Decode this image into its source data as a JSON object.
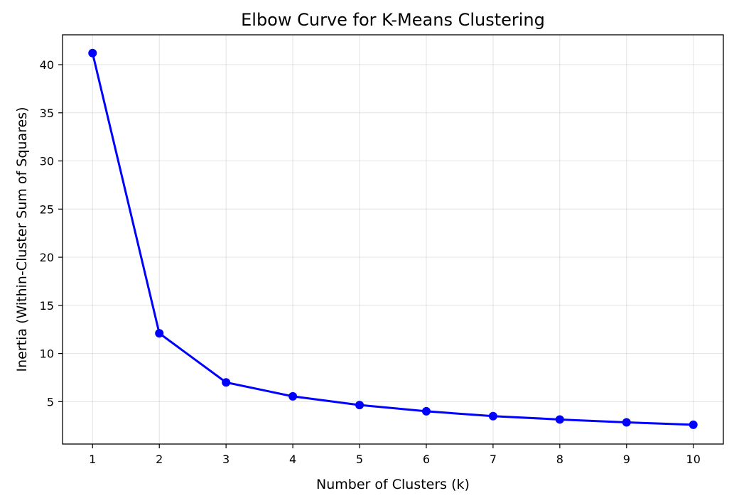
{
  "chart_data": {
    "type": "line",
    "title": "Elbow Curve for K-Means Clustering",
    "xlabel": "Number of Clusters (k)",
    "ylabel": "Inertia (Within-Cluster Sum of Squares)",
    "x": [
      1,
      2,
      3,
      4,
      5,
      6,
      7,
      8,
      9,
      10
    ],
    "series": [
      {
        "values": [
          41.2,
          12.1,
          7.0,
          5.55,
          4.65,
          4.0,
          3.5,
          3.15,
          2.85,
          2.6
        ],
        "color": "#0000ff",
        "marker": "circle"
      }
    ],
    "xticks": [
      1,
      2,
      3,
      4,
      5,
      6,
      7,
      8,
      9,
      10
    ],
    "yticks": [
      5,
      10,
      15,
      20,
      25,
      30,
      35,
      40
    ],
    "xlim": [
      0.55,
      10.45
    ],
    "ylim": [
      0.6,
      43.1
    ],
    "grid": true,
    "legend": "none"
  }
}
